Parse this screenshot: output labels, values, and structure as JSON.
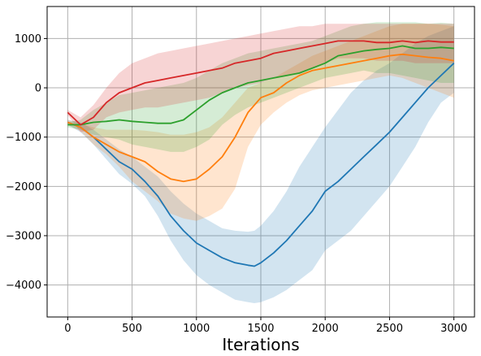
{
  "chart_data": {
    "type": "line",
    "title": "",
    "xlabel": "Iterations",
    "ylabel": "",
    "xlim": [
      -160,
      3160
    ],
    "ylim": [
      -4650,
      1650
    ],
    "xticks": [
      0,
      500,
      1000,
      1500,
      2000,
      2500,
      3000
    ],
    "yticks": [
      -4000,
      -3000,
      -2000,
      -1000,
      0,
      1000
    ],
    "grid": true,
    "legend": "none",
    "series": [
      {
        "color": "#1f77b4",
        "x": [
          0,
          100,
          200,
          300,
          400,
          500,
          600,
          700,
          800,
          900,
          1000,
          1100,
          1200,
          1300,
          1400,
          1450,
          1500,
          1600,
          1700,
          1800,
          1900,
          2000,
          2100,
          2200,
          2300,
          2400,
          2500,
          2600,
          2700,
          2800,
          2900,
          3000
        ],
        "y": [
          -700,
          -800,
          -1000,
          -1250,
          -1500,
          -1650,
          -1900,
          -2200,
          -2600,
          -2900,
          -3150,
          -3300,
          -3450,
          -3550,
          -3600,
          -3620,
          -3550,
          -3350,
          -3100,
          -2800,
          -2500,
          -2100,
          -1900,
          -1650,
          -1400,
          -1150,
          -900,
          -600,
          -300,
          0,
          250,
          500
        ],
        "upper": [
          -650,
          -700,
          -850,
          -1050,
          -1250,
          -1400,
          -1600,
          -1800,
          -2100,
          -2350,
          -2550,
          -2700,
          -2850,
          -2900,
          -2920,
          -2900,
          -2800,
          -2500,
          -2100,
          -1600,
          -1200,
          -800,
          -450,
          -100,
          150,
          350,
          500,
          700,
          900,
          1050,
          1150,
          1250
        ],
        "lower": [
          -750,
          -900,
          -1150,
          -1450,
          -1750,
          -1950,
          -2200,
          -2600,
          -3100,
          -3500,
          -3800,
          -4000,
          -4150,
          -4300,
          -4350,
          -4370,
          -4350,
          -4250,
          -4100,
          -3900,
          -3700,
          -3300,
          -3100,
          -2900,
          -2600,
          -2300,
          -2000,
          -1600,
          -1200,
          -700,
          -300,
          -100
        ]
      },
      {
        "color": "#ff7f0e",
        "x": [
          0,
          100,
          200,
          300,
          400,
          500,
          600,
          700,
          800,
          900,
          1000,
          1100,
          1200,
          1300,
          1400,
          1500,
          1600,
          1700,
          1800,
          1900,
          2000,
          2100,
          2200,
          2300,
          2400,
          2500,
          2600,
          2700,
          2800,
          2900,
          3000
        ],
        "y": [
          -700,
          -800,
          -1000,
          -1150,
          -1300,
          -1400,
          -1500,
          -1700,
          -1850,
          -1900,
          -1850,
          -1650,
          -1400,
          -1000,
          -500,
          -200,
          -100,
          100,
          250,
          350,
          400,
          450,
          500,
          550,
          600,
          650,
          680,
          650,
          620,
          600,
          550
        ],
        "upper": [
          -650,
          -720,
          -800,
          -850,
          -850,
          -850,
          -870,
          -900,
          -950,
          -950,
          -900,
          -800,
          -600,
          -300,
          0,
          100,
          200,
          350,
          500,
          650,
          750,
          850,
          950,
          1050,
          1150,
          1250,
          1300,
          1300,
          1300,
          1280,
          1250
        ],
        "lower": [
          -750,
          -880,
          -1150,
          -1350,
          -1600,
          -1900,
          -2100,
          -2300,
          -2550,
          -2650,
          -2700,
          -2600,
          -2450,
          -2050,
          -1200,
          -750,
          -500,
          -300,
          -150,
          -50,
          0,
          50,
          100,
          150,
          200,
          250,
          200,
          100,
          0,
          -100,
          -200
        ]
      },
      {
        "color": "#2ca02c",
        "x": [
          0,
          100,
          200,
          300,
          400,
          500,
          600,
          700,
          800,
          900,
          1000,
          1100,
          1200,
          1300,
          1400,
          1500,
          1600,
          1700,
          1800,
          1900,
          2000,
          2100,
          2200,
          2300,
          2400,
          2500,
          2600,
          2700,
          2800,
          2900,
          3000
        ],
        "y": [
          -750,
          -750,
          -700,
          -680,
          -650,
          -680,
          -700,
          -720,
          -720,
          -650,
          -450,
          -250,
          -100,
          0,
          100,
          150,
          200,
          250,
          300,
          400,
          500,
          650,
          700,
          750,
          780,
          800,
          850,
          800,
          800,
          820,
          800
        ],
        "upper": [
          -700,
          -650,
          -450,
          -300,
          -150,
          -100,
          -50,
          0,
          50,
          100,
          200,
          350,
          500,
          600,
          700,
          750,
          800,
          850,
          900,
          950,
          1050,
          1150,
          1250,
          1300,
          1330,
          1330,
          1330,
          1330,
          1300,
          1320,
          1300
        ],
        "lower": [
          -800,
          -850,
          -950,
          -1000,
          -1050,
          -1150,
          -1200,
          -1250,
          -1300,
          -1300,
          -1200,
          -1050,
          -750,
          -550,
          -400,
          -300,
          -200,
          -100,
          0,
          100,
          200,
          250,
          300,
          350,
          300,
          300,
          250,
          200,
          150,
          100,
          100
        ]
      },
      {
        "color": "#d62728",
        "x": [
          0,
          100,
          200,
          300,
          400,
          500,
          600,
          700,
          800,
          900,
          1000,
          1100,
          1200,
          1300,
          1400,
          1500,
          1600,
          1700,
          1800,
          1900,
          2000,
          2100,
          2200,
          2300,
          2400,
          2500,
          2600,
          2700,
          2800,
          2900,
          3000
        ],
        "y": [
          -500,
          -750,
          -600,
          -300,
          -100,
          0,
          100,
          150,
          200,
          250,
          300,
          350,
          400,
          500,
          550,
          600,
          700,
          750,
          800,
          850,
          900,
          950,
          950,
          950,
          920,
          920,
          950,
          920,
          950,
          930,
          930
        ],
        "upper": [
          -450,
          -600,
          -350,
          0,
          300,
          500,
          600,
          700,
          750,
          800,
          850,
          900,
          950,
          1000,
          1050,
          1100,
          1150,
          1200,
          1250,
          1250,
          1300,
          1300,
          1300,
          1300,
          1300,
          1300,
          1300,
          1300,
          1300,
          1300,
          1300
        ],
        "lower": [
          -550,
          -900,
          -850,
          -600,
          -500,
          -450,
          -400,
          -400,
          -350,
          -300,
          -250,
          -200,
          -100,
          0,
          50,
          100,
          200,
          250,
          300,
          400,
          500,
          600,
          600,
          600,
          550,
          550,
          550,
          500,
          500,
          500,
          500
        ]
      }
    ]
  }
}
